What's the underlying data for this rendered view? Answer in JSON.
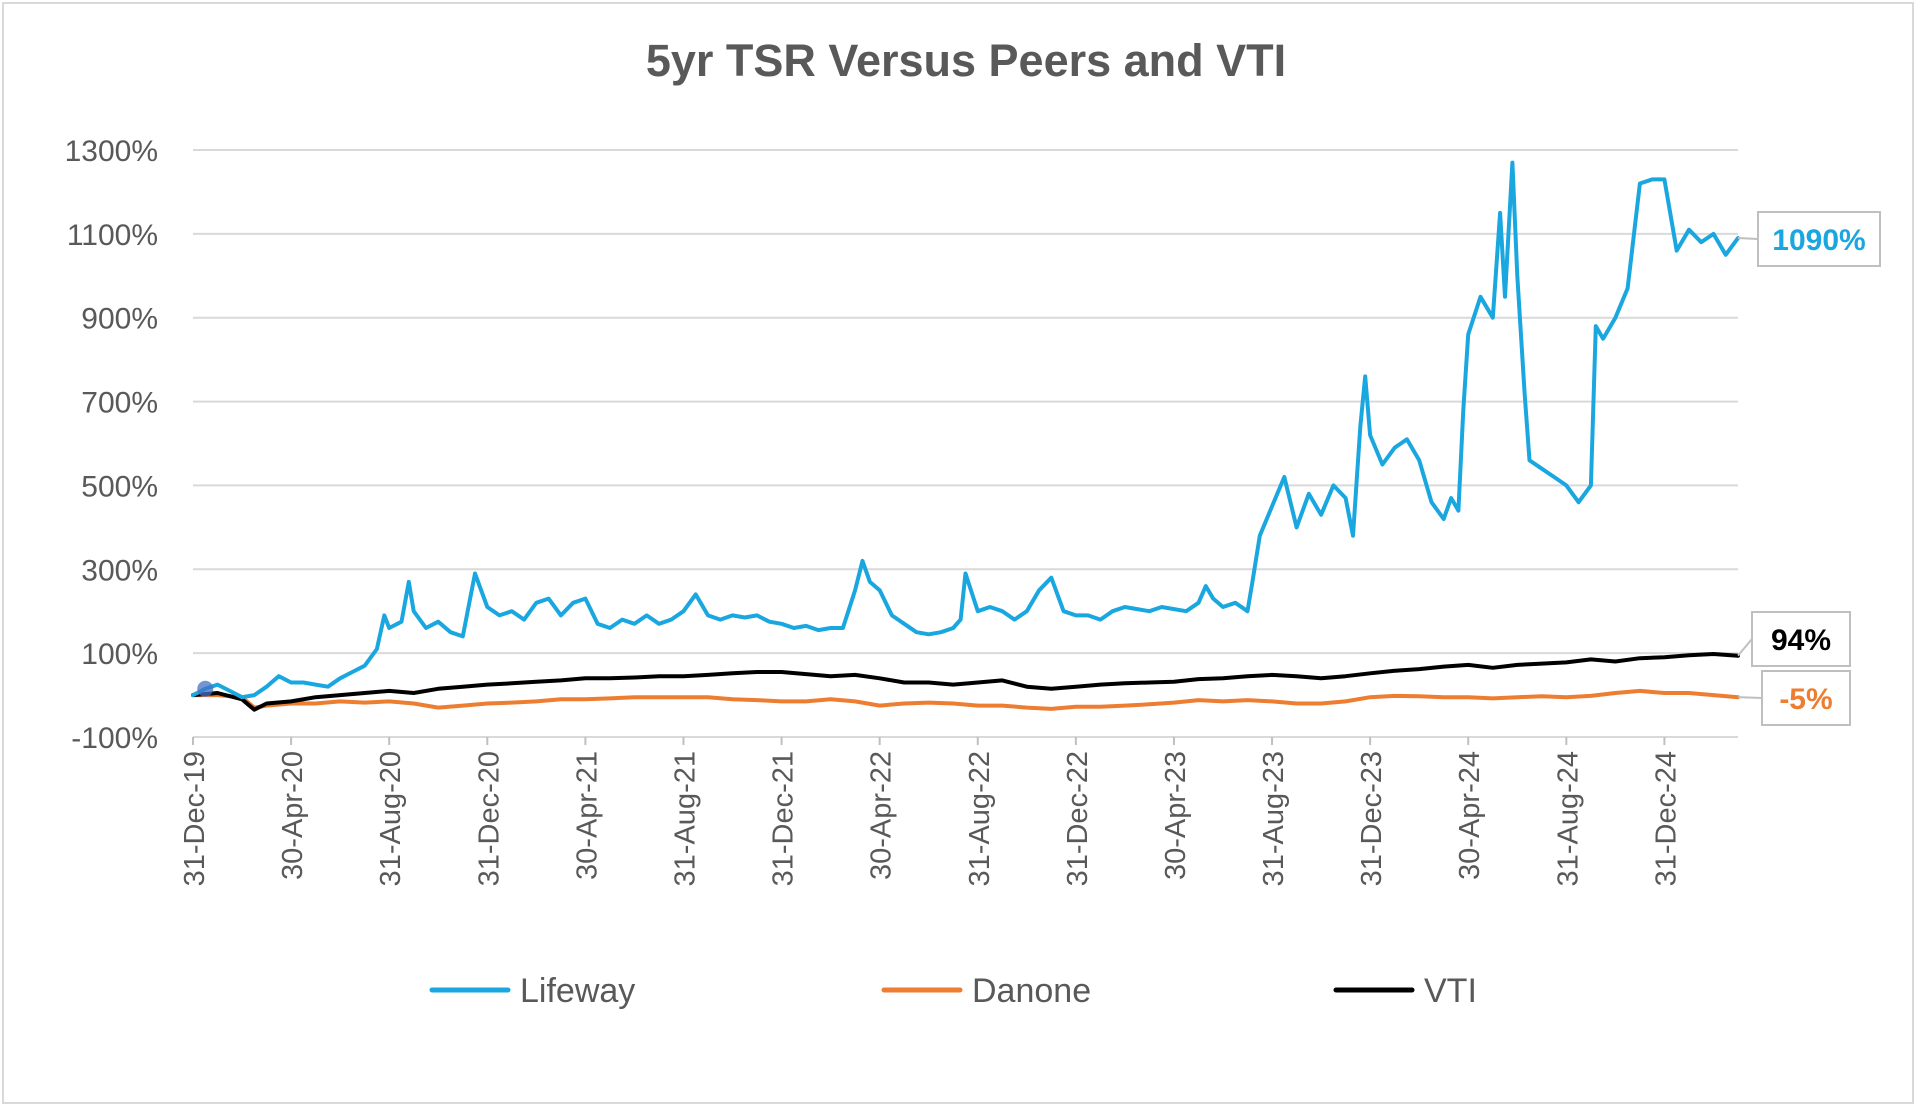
{
  "chart_data": {
    "type": "line",
    "title": "5yr TSR Versus Peers and VTI",
    "xlabel": "",
    "ylabel": "",
    "ylim": [
      -100,
      1300
    ],
    "grid": true,
    "legend_position": "bottom",
    "y_ticks": [
      {
        "value": -100,
        "label": "-100%"
      },
      {
        "value": 100,
        "label": "100%"
      },
      {
        "value": 300,
        "label": "300%"
      },
      {
        "value": 500,
        "label": "500%"
      },
      {
        "value": 700,
        "label": "700%"
      },
      {
        "value": 900,
        "label": "900%"
      },
      {
        "value": 1100,
        "label": "1100%"
      },
      {
        "value": 1300,
        "label": "1300%"
      }
    ],
    "x_ticks": [
      {
        "month": 0,
        "label": "31-Dec-19"
      },
      {
        "month": 4,
        "label": "30-Apr-20"
      },
      {
        "month": 8,
        "label": "31-Aug-20"
      },
      {
        "month": 12,
        "label": "31-Dec-20"
      },
      {
        "month": 16,
        "label": "30-Apr-21"
      },
      {
        "month": 20,
        "label": "31-Aug-21"
      },
      {
        "month": 24,
        "label": "31-Dec-21"
      },
      {
        "month": 28,
        "label": "30-Apr-22"
      },
      {
        "month": 32,
        "label": "31-Aug-22"
      },
      {
        "month": 36,
        "label": "31-Dec-22"
      },
      {
        "month": 40,
        "label": "30-Apr-23"
      },
      {
        "month": 44,
        "label": "31-Aug-23"
      },
      {
        "month": 48,
        "label": "31-Dec-23"
      },
      {
        "month": 52,
        "label": "30-Apr-24"
      },
      {
        "month": 56,
        "label": "31-Aug-24"
      },
      {
        "month": 60,
        "label": "31-Dec-24"
      }
    ],
    "series": [
      {
        "name": "Lifeway",
        "color": "#1aa7e0",
        "end_label": "1090%",
        "points": [
          [
            0,
            0
          ],
          [
            0.5,
            15
          ],
          [
            1,
            25
          ],
          [
            1.5,
            10
          ],
          [
            2,
            -5
          ],
          [
            2.5,
            0
          ],
          [
            3,
            20
          ],
          [
            3.5,
            45
          ],
          [
            4,
            30
          ],
          [
            4.5,
            30
          ],
          [
            5,
            25
          ],
          [
            5.5,
            20
          ],
          [
            6,
            40
          ],
          [
            6.5,
            55
          ],
          [
            7,
            70
          ],
          [
            7.5,
            110
          ],
          [
            7.8,
            190
          ],
          [
            8,
            160
          ],
          [
            8.5,
            175
          ],
          [
            8.8,
            270
          ],
          [
            9,
            200
          ],
          [
            9.5,
            160
          ],
          [
            10,
            175
          ],
          [
            10.5,
            150
          ],
          [
            11,
            140
          ],
          [
            11.3,
            230
          ],
          [
            11.5,
            290
          ],
          [
            12,
            210
          ],
          [
            12.5,
            190
          ],
          [
            13,
            200
          ],
          [
            13.5,
            180
          ],
          [
            14,
            220
          ],
          [
            14.5,
            230
          ],
          [
            15,
            190
          ],
          [
            15.5,
            220
          ],
          [
            16,
            230
          ],
          [
            16.5,
            170
          ],
          [
            17,
            160
          ],
          [
            17.5,
            180
          ],
          [
            18,
            170
          ],
          [
            18.5,
            190
          ],
          [
            19,
            170
          ],
          [
            19.5,
            180
          ],
          [
            20,
            200
          ],
          [
            20.5,
            240
          ],
          [
            21,
            190
          ],
          [
            21.5,
            180
          ],
          [
            22,
            190
          ],
          [
            22.5,
            185
          ],
          [
            23,
            190
          ],
          [
            23.5,
            175
          ],
          [
            24,
            170
          ],
          [
            24.5,
            160
          ],
          [
            25,
            165
          ],
          [
            25.5,
            155
          ],
          [
            26,
            160
          ],
          [
            26.5,
            160
          ],
          [
            27,
            250
          ],
          [
            27.3,
            320
          ],
          [
            27.6,
            270
          ],
          [
            28,
            250
          ],
          [
            28.5,
            190
          ],
          [
            29,
            170
          ],
          [
            29.5,
            150
          ],
          [
            30,
            145
          ],
          [
            30.5,
            150
          ],
          [
            31,
            160
          ],
          [
            31.3,
            180
          ],
          [
            31.5,
            290
          ],
          [
            32,
            200
          ],
          [
            32.5,
            210
          ],
          [
            33,
            200
          ],
          [
            33.5,
            180
          ],
          [
            34,
            200
          ],
          [
            34.5,
            250
          ],
          [
            35,
            280
          ],
          [
            35.5,
            200
          ],
          [
            36,
            190
          ],
          [
            36.5,
            190
          ],
          [
            37,
            180
          ],
          [
            37.5,
            200
          ],
          [
            38,
            210
          ],
          [
            38.5,
            205
          ],
          [
            39,
            200
          ],
          [
            39.5,
            210
          ],
          [
            40,
            205
          ],
          [
            40.5,
            200
          ],
          [
            41,
            220
          ],
          [
            41.3,
            260
          ],
          [
            41.6,
            230
          ],
          [
            42,
            210
          ],
          [
            42.5,
            220
          ],
          [
            43,
            200
          ],
          [
            43.2,
            270
          ],
          [
            43.5,
            380
          ],
          [
            44,
            450
          ],
          [
            44.5,
            520
          ],
          [
            45,
            400
          ],
          [
            45.5,
            480
          ],
          [
            46,
            430
          ],
          [
            46.5,
            500
          ],
          [
            47,
            470
          ],
          [
            47.3,
            380
          ],
          [
            47.6,
            640
          ],
          [
            47.8,
            760
          ],
          [
            48,
            620
          ],
          [
            48.5,
            550
          ],
          [
            49,
            590
          ],
          [
            49.5,
            610
          ],
          [
            50,
            560
          ],
          [
            50.5,
            460
          ],
          [
            51,
            420
          ],
          [
            51.3,
            470
          ],
          [
            51.6,
            440
          ],
          [
            51.8,
            680
          ],
          [
            52,
            860
          ],
          [
            52.5,
            950
          ],
          [
            53,
            900
          ],
          [
            53.3,
            1150
          ],
          [
            53.5,
            950
          ],
          [
            53.8,
            1270
          ],
          [
            54,
            1000
          ],
          [
            54.3,
            720
          ],
          [
            54.5,
            560
          ],
          [
            55,
            540
          ],
          [
            55.5,
            520
          ],
          [
            56,
            500
          ],
          [
            56.5,
            460
          ],
          [
            57,
            500
          ],
          [
            57.2,
            880
          ],
          [
            57.5,
            850
          ],
          [
            58,
            900
          ],
          [
            58.5,
            970
          ],
          [
            59,
            1220
          ],
          [
            59.5,
            1230
          ],
          [
            60,
            1230
          ],
          [
            60.5,
            1060
          ],
          [
            61,
            1110
          ],
          [
            61.5,
            1080
          ],
          [
            62,
            1100
          ],
          [
            62.5,
            1050
          ],
          [
            63,
            1090
          ]
        ]
      },
      {
        "name": "Danone",
        "color": "#ed7d31",
        "end_label": "-5%",
        "points": [
          [
            0,
            0
          ],
          [
            1,
            0
          ],
          [
            2,
            -5
          ],
          [
            2.5,
            -30
          ],
          [
            3,
            -25
          ],
          [
            4,
            -20
          ],
          [
            5,
            -20
          ],
          [
            6,
            -15
          ],
          [
            7,
            -18
          ],
          [
            8,
            -15
          ],
          [
            9,
            -20
          ],
          [
            10,
            -30
          ],
          [
            11,
            -25
          ],
          [
            12,
            -20
          ],
          [
            13,
            -18
          ],
          [
            14,
            -15
          ],
          [
            15,
            -10
          ],
          [
            16,
            -10
          ],
          [
            17,
            -8
          ],
          [
            18,
            -5
          ],
          [
            19,
            -5
          ],
          [
            20,
            -5
          ],
          [
            21,
            -5
          ],
          [
            22,
            -10
          ],
          [
            23,
            -12
          ],
          [
            24,
            -15
          ],
          [
            25,
            -15
          ],
          [
            26,
            -10
          ],
          [
            27,
            -15
          ],
          [
            28,
            -25
          ],
          [
            29,
            -20
          ],
          [
            30,
            -18
          ],
          [
            31,
            -20
          ],
          [
            32,
            -25
          ],
          [
            33,
            -25
          ],
          [
            34,
            -30
          ],
          [
            35,
            -33
          ],
          [
            36,
            -28
          ],
          [
            37,
            -28
          ],
          [
            38,
            -25
          ],
          [
            39,
            -22
          ],
          [
            40,
            -18
          ],
          [
            41,
            -12
          ],
          [
            42,
            -15
          ],
          [
            43,
            -12
          ],
          [
            44,
            -15
          ],
          [
            45,
            -20
          ],
          [
            46,
            -20
          ],
          [
            47,
            -15
          ],
          [
            48,
            -5
          ],
          [
            49,
            -2
          ],
          [
            50,
            -3
          ],
          [
            51,
            -5
          ],
          [
            52,
            -5
          ],
          [
            53,
            -8
          ],
          [
            54,
            -5
          ],
          [
            55,
            -3
          ],
          [
            56,
            -5
          ],
          [
            57,
            -2
          ],
          [
            58,
            5
          ],
          [
            59,
            10
          ],
          [
            60,
            5
          ],
          [
            61,
            5
          ],
          [
            62,
            0
          ],
          [
            63,
            -5
          ]
        ]
      },
      {
        "name": "VTI",
        "color": "#000000",
        "end_label": "94%",
        "points": [
          [
            0,
            0
          ],
          [
            1,
            5
          ],
          [
            2,
            -10
          ],
          [
            2.5,
            -35
          ],
          [
            3,
            -20
          ],
          [
            4,
            -15
          ],
          [
            5,
            -5
          ],
          [
            6,
            0
          ],
          [
            7,
            5
          ],
          [
            8,
            10
          ],
          [
            9,
            5
          ],
          [
            10,
            15
          ],
          [
            11,
            20
          ],
          [
            12,
            25
          ],
          [
            13,
            28
          ],
          [
            14,
            32
          ],
          [
            15,
            35
          ],
          [
            16,
            40
          ],
          [
            17,
            40
          ],
          [
            18,
            42
          ],
          [
            19,
            45
          ],
          [
            20,
            45
          ],
          [
            21,
            48
          ],
          [
            22,
            52
          ],
          [
            23,
            55
          ],
          [
            24,
            55
          ],
          [
            25,
            50
          ],
          [
            26,
            45
          ],
          [
            27,
            48
          ],
          [
            28,
            40
          ],
          [
            29,
            30
          ],
          [
            30,
            30
          ],
          [
            31,
            25
          ],
          [
            32,
            30
          ],
          [
            33,
            35
          ],
          [
            34,
            20
          ],
          [
            35,
            15
          ],
          [
            36,
            20
          ],
          [
            37,
            25
          ],
          [
            38,
            28
          ],
          [
            39,
            30
          ],
          [
            40,
            32
          ],
          [
            41,
            38
          ],
          [
            42,
            40
          ],
          [
            43,
            45
          ],
          [
            44,
            48
          ],
          [
            45,
            45
          ],
          [
            46,
            40
          ],
          [
            47,
            45
          ],
          [
            48,
            52
          ],
          [
            49,
            58
          ],
          [
            50,
            62
          ],
          [
            51,
            68
          ],
          [
            52,
            72
          ],
          [
            53,
            65
          ],
          [
            54,
            72
          ],
          [
            55,
            75
          ],
          [
            56,
            78
          ],
          [
            57,
            85
          ],
          [
            58,
            80
          ],
          [
            59,
            88
          ],
          [
            60,
            90
          ],
          [
            61,
            95
          ],
          [
            62,
            98
          ],
          [
            63,
            94
          ]
        ]
      }
    ]
  }
}
